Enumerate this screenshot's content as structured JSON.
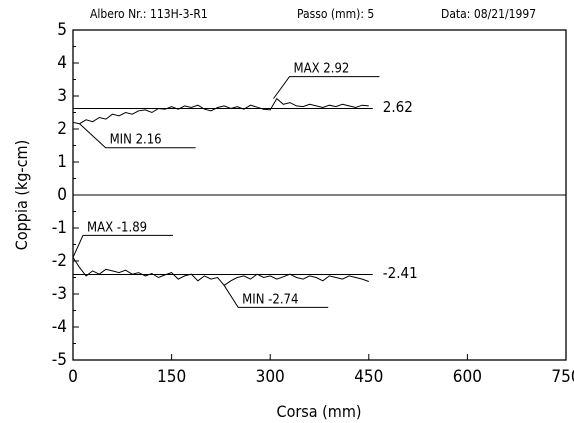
{
  "header": {
    "shaft": "Albero Nr.: 113H-3-R1",
    "step": "Passo (mm): 5",
    "date": "Data: 08/21/1997"
  },
  "chart_data": {
    "type": "line",
    "xlabel": "Corsa (mm)",
    "ylabel": "Coppia (kg-cm)",
    "xlim": [
      0,
      750
    ],
    "ylim": [
      -5,
      5
    ],
    "xticks": [
      0,
      150,
      300,
      450,
      600,
      750
    ],
    "yticks": [
      5,
      4,
      3,
      2,
      1,
      0,
      -1,
      -2,
      -3,
      -4,
      -5
    ],
    "zero_line": true,
    "series": [
      {
        "x": [
          0,
          10,
          20,
          30,
          40,
          50,
          60,
          70,
          80,
          90,
          100,
          110,
          120,
          130,
          140,
          150,
          160,
          170,
          180,
          190,
          200,
          210,
          220,
          230,
          240,
          250,
          260,
          270,
          280,
          290,
          300,
          310,
          320,
          330,
          340,
          350,
          360,
          370,
          380,
          390,
          400,
          410,
          420,
          430,
          440,
          450
        ],
        "y": [
          2.2,
          2.16,
          2.28,
          2.22,
          2.35,
          2.3,
          2.45,
          2.4,
          2.5,
          2.45,
          2.55,
          2.58,
          2.5,
          2.62,
          2.6,
          2.68,
          2.6,
          2.7,
          2.65,
          2.72,
          2.6,
          2.55,
          2.65,
          2.7,
          2.62,
          2.68,
          2.6,
          2.72,
          2.66,
          2.6,
          2.58,
          2.92,
          2.75,
          2.8,
          2.7,
          2.68,
          2.75,
          2.7,
          2.65,
          2.72,
          2.68,
          2.75,
          2.7,
          2.65,
          2.72,
          2.7
        ]
      },
      {
        "x": [
          0,
          10,
          20,
          30,
          40,
          50,
          60,
          70,
          80,
          90,
          100,
          110,
          120,
          130,
          140,
          150,
          160,
          170,
          180,
          190,
          200,
          210,
          220,
          230,
          240,
          250,
          260,
          270,
          280,
          290,
          300,
          310,
          320,
          330,
          340,
          350,
          360,
          370,
          380,
          390,
          400,
          410,
          420,
          430,
          440,
          450
        ],
        "y": [
          -1.89,
          -2.2,
          -2.45,
          -2.3,
          -2.4,
          -2.25,
          -2.3,
          -2.35,
          -2.28,
          -2.4,
          -2.35,
          -2.45,
          -2.38,
          -2.5,
          -2.42,
          -2.35,
          -2.55,
          -2.45,
          -2.4,
          -2.6,
          -2.45,
          -2.55,
          -2.5,
          -2.74,
          -2.6,
          -2.5,
          -2.45,
          -2.55,
          -2.4,
          -2.5,
          -2.45,
          -2.55,
          -2.48,
          -2.4,
          -2.5,
          -2.55,
          -2.45,
          -2.5,
          -2.6,
          -2.45,
          -2.5,
          -2.55,
          -2.45,
          -2.5,
          -2.55,
          -2.62
        ]
      }
    ],
    "reference_lines": [
      {
        "y": 2.62,
        "label": "2.62"
      },
      {
        "y": -2.41,
        "label": "-2.41"
      }
    ],
    "annotations": [
      {
        "label": "MAX 2.92",
        "x": 305,
        "y": 2.92
      },
      {
        "label": "MIN 2.16",
        "x": 10,
        "y": 2.16
      },
      {
        "label": "MAX -1.89",
        "x": 0,
        "y": -1.89
      },
      {
        "label": "MIN -2.74",
        "x": 230,
        "y": -2.74
      }
    ]
  }
}
